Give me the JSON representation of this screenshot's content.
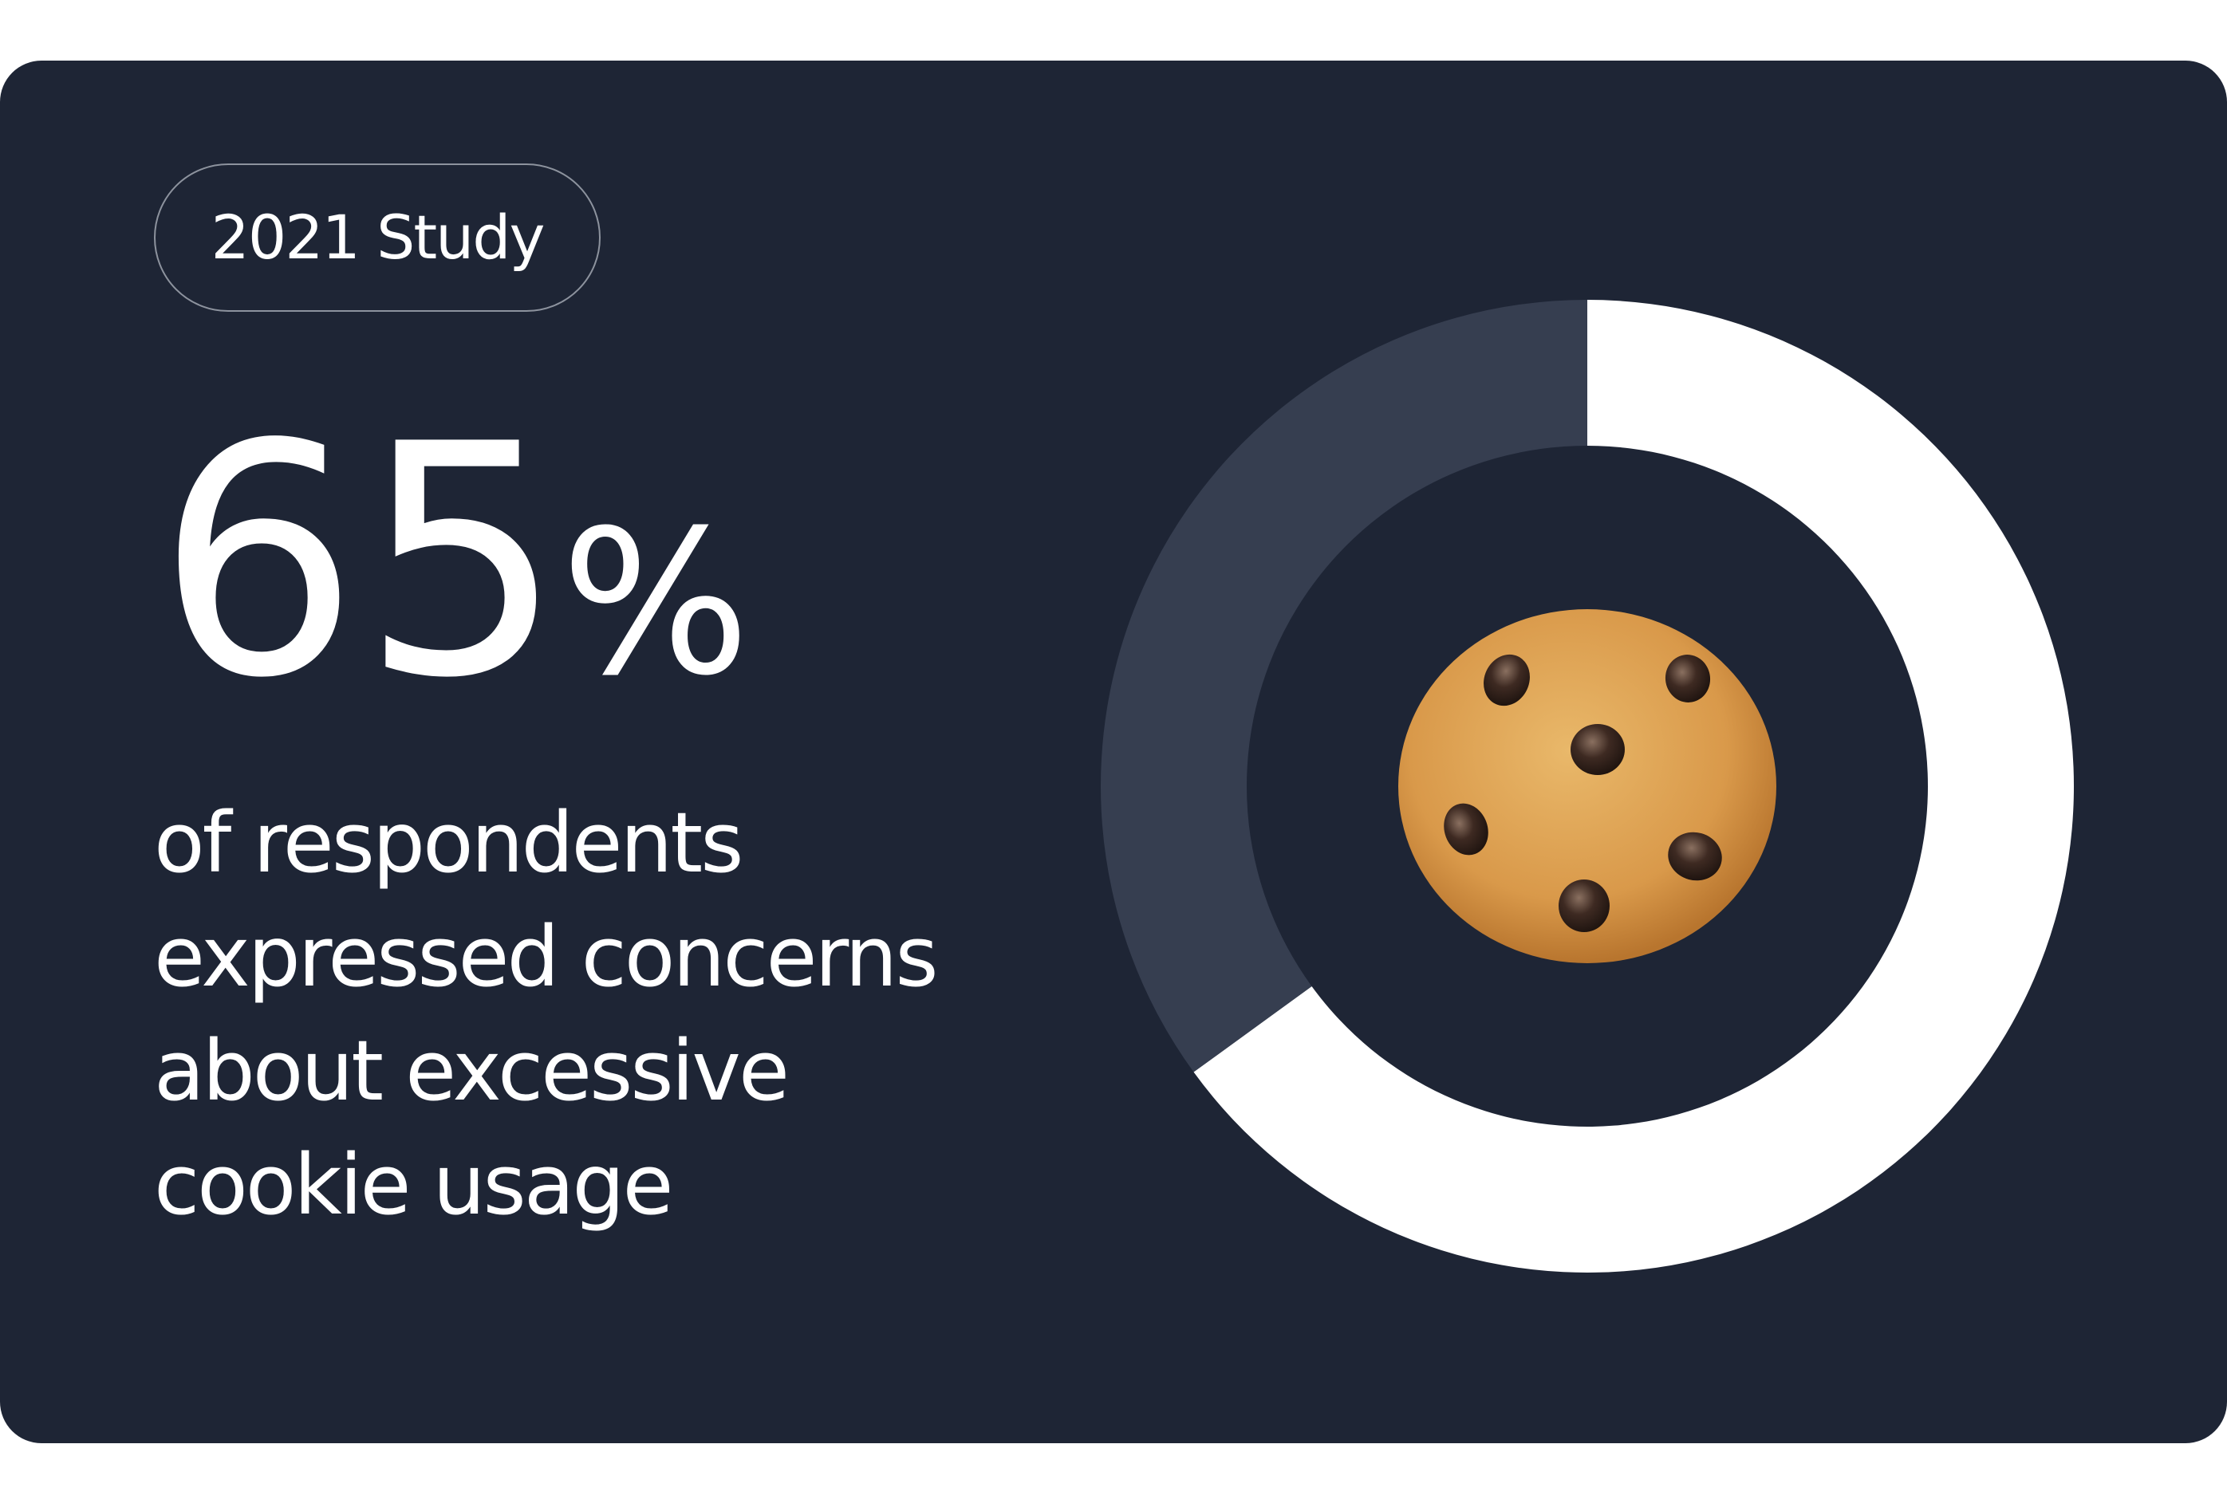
{
  "card": {
    "background": "#1e2535"
  },
  "badge": {
    "label": "2021 Study"
  },
  "stat": {
    "number": "65",
    "suffix": "%"
  },
  "description": {
    "lines": [
      "of respondents",
      "expressed concerns",
      "about excessive",
      "cookie usage"
    ]
  },
  "chart_data": {
    "type": "pie",
    "style": "donut",
    "series": [
      {
        "value": 65,
        "color": "#ffffff"
      },
      {
        "value": 35,
        "color": "#363e50"
      }
    ],
    "center_icon": "cookie-icon"
  }
}
